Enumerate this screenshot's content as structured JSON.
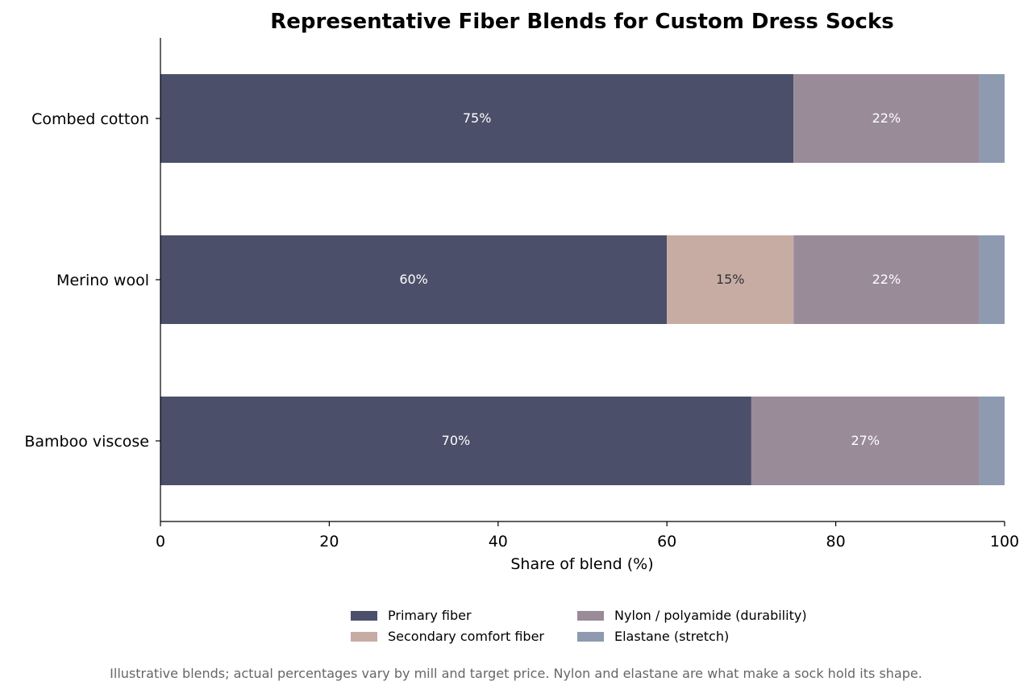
{
  "chart_data": {
    "type": "bar",
    "orientation": "horizontal",
    "stacked": true,
    "title": "Representative Fiber Blends for Custom Dress Socks",
    "xlabel": "Share of blend (%)",
    "ylabel": "",
    "xlim": [
      0,
      100
    ],
    "xticks": [
      "0",
      "20",
      "40",
      "60",
      "80",
      "100"
    ],
    "categories": [
      "Combed cotton",
      "Merino wool",
      "Bamboo viscose"
    ],
    "series": [
      {
        "name": "Primary fiber",
        "color": "#4b4f6a",
        "values": [
          75,
          60,
          70
        ],
        "labels": [
          "75%",
          "60%",
          "70%"
        ],
        "label_color": "#ffffff"
      },
      {
        "name": "Secondary comfort fiber",
        "color": "#c7aca4",
        "values": [
          0,
          15,
          0
        ],
        "labels": [
          "",
          "15%",
          ""
        ],
        "label_color": "#333333"
      },
      {
        "name": "Nylon / polyamide (durability)",
        "color": "#9a8b99",
        "values": [
          22,
          22,
          27
        ],
        "labels": [
          "22%",
          "22%",
          "27%"
        ],
        "label_color": "#ffffff"
      },
      {
        "name": "Elastane (stretch)",
        "color": "#8d9ab0",
        "values": [
          3,
          3,
          3
        ],
        "labels": [
          "",
          "",
          ""
        ],
        "label_color": "#ffffff"
      }
    ],
    "grid": false,
    "legend_position": "bottom"
  },
  "footnote": "Illustrative blends; actual percentages vary by mill and target price. Nylon and elastane are what make a sock hold its shape."
}
